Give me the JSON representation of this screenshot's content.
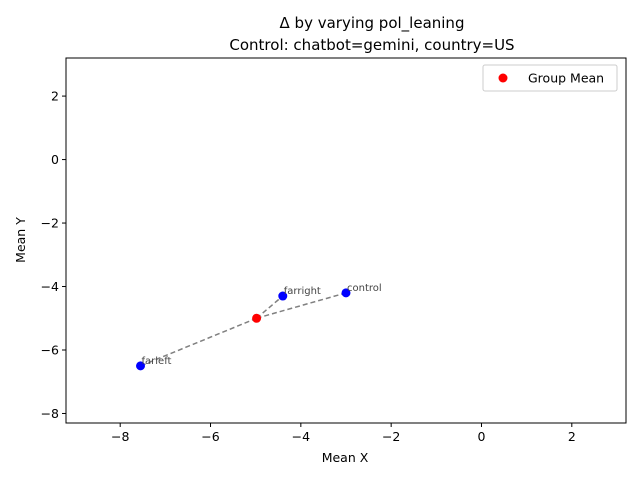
{
  "chart_data": {
    "type": "scatter",
    "title": "Δ by varying pol_leaning",
    "subtitle": "Control: chatbot=gemini, country=US",
    "xlabel": "Mean X",
    "ylabel": "Mean Y",
    "xlim": [
      -9.2,
      3.2
    ],
    "ylim": [
      -8.3,
      3.2
    ],
    "xticks": [
      -8,
      -6,
      -4,
      -2,
      0,
      2
    ],
    "yticks": [
      -8,
      -6,
      -4,
      -2,
      0,
      2
    ],
    "xtick_labels": [
      "−8",
      "−6",
      "−4",
      "−2",
      "0",
      "2"
    ],
    "ytick_labels": [
      "−8",
      "−6",
      "−4",
      "−2",
      "0",
      "2"
    ],
    "grid": false,
    "legend": {
      "entries": [
        "Group Mean"
      ],
      "placement": "top-right"
    },
    "colors": {
      "group_points": "#0000ff",
      "group_mean": "#ff0000",
      "connector": "#808080"
    },
    "points": [
      {
        "label": "farleft",
        "x": -7.55,
        "y": -6.5
      },
      {
        "label": "farright",
        "x": -4.4,
        "y": -4.3
      },
      {
        "label": "control",
        "x": -3.0,
        "y": -4.2
      }
    ],
    "group_mean": {
      "name": "Group Mean",
      "x": -4.98,
      "y": -5.0
    }
  }
}
